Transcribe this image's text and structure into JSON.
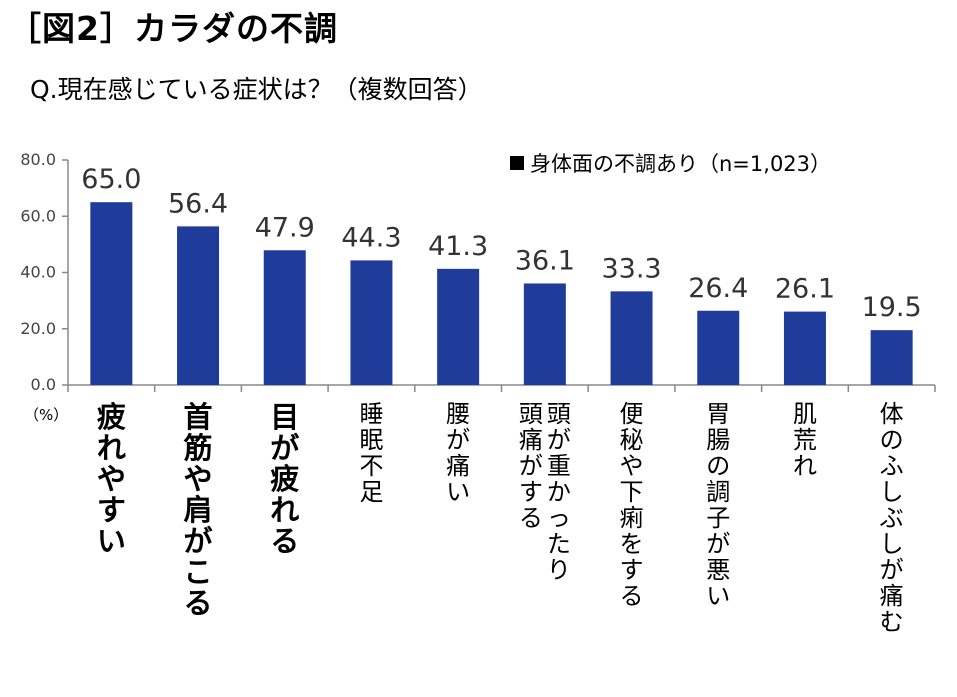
{
  "header": {
    "title": "［図2］カラダの不調",
    "subtitle": "Q.現在感じている症状は？（複数回答）"
  },
  "legend": {
    "label": "身体面の不調あり（n=1,023）"
  },
  "axis": {
    "unit_label": "（%）"
  },
  "colors": {
    "bar": "#1f3c9a",
    "axis": "#888888",
    "tick_text": "#444444",
    "value_text": "#333333"
  },
  "chart_data": {
    "type": "bar",
    "title": "［図2］カラダの不調",
    "subtitle": "Q.現在感じている症状は？（複数回答）",
    "categories": [
      "疲れやすい",
      "首筋や肩がこる",
      "目が疲れる",
      "睡眠不足",
      "腰が痛い",
      "頭が重かったり頭痛がする",
      "便秘や下痢をする",
      "胃腸の調子が悪い",
      "肌荒れ",
      "体のふしぶしが痛む"
    ],
    "category_lines": [
      [
        "疲れやすい"
      ],
      [
        "首筋や肩がこる"
      ],
      [
        "目が疲れる"
      ],
      [
        "睡眠不足"
      ],
      [
        "腰が痛い"
      ],
      [
        "頭が重かったり",
        "頭痛がする"
      ],
      [
        "便秘や下痢をする"
      ],
      [
        "胃腸の調子が悪い"
      ],
      [
        "肌荒れ"
      ],
      [
        "体のふしぶしが痛む"
      ]
    ],
    "bold_categories": [
      0,
      1,
      2
    ],
    "series": [
      {
        "name": "身体面の不調あり（n=1,023）",
        "values": [
          65.0,
          56.4,
          47.9,
          44.3,
          41.3,
          36.1,
          33.3,
          26.4,
          26.1,
          19.5
        ]
      }
    ],
    "data_labels": [
      "65.0",
      "56.4",
      "47.9",
      "44.3",
      "41.3",
      "36.1",
      "33.3",
      "26.4",
      "26.1",
      "19.5"
    ],
    "yticks": [
      "0.0",
      "20.0",
      "40.0",
      "60.0",
      "80.0"
    ],
    "ylim": [
      0,
      80
    ],
    "ylabel": "（%）",
    "legend_position": "top-right",
    "grid": false
  }
}
